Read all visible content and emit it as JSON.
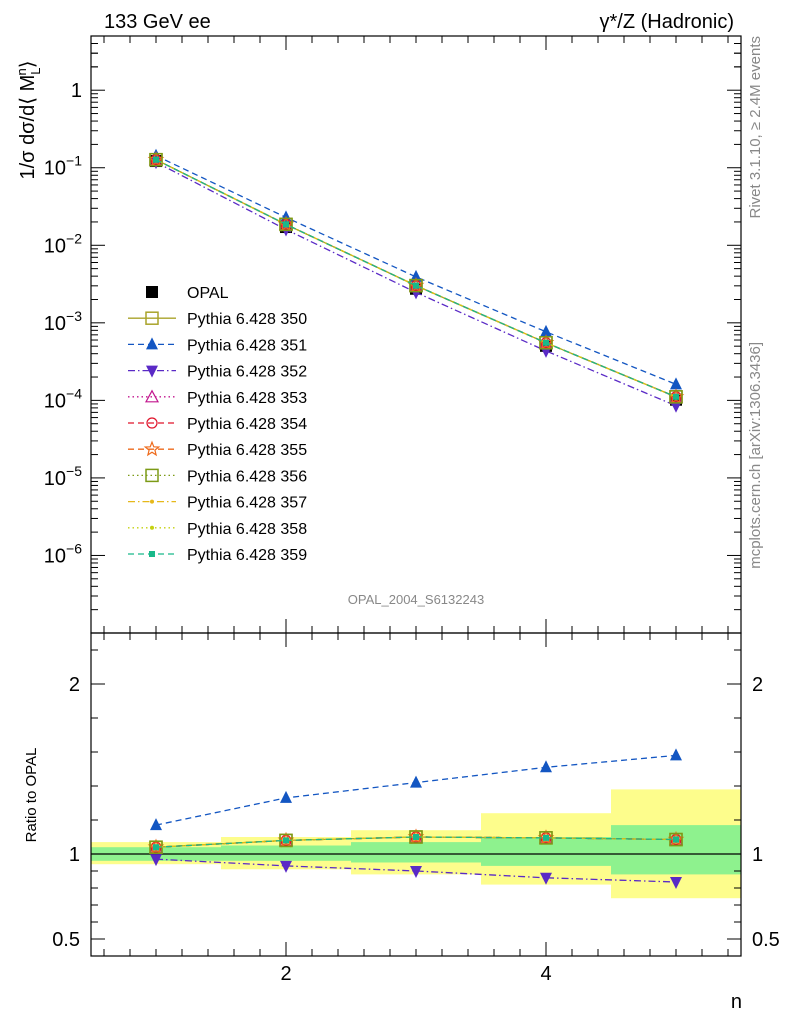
{
  "header": {
    "left": "133 GeV ee",
    "right": "γ*/Z (Hadronic)"
  },
  "side": {
    "rivet": "Rivet 3.1.10, ≥ 2.4M events",
    "mcplots": "mcplots.cern.ch [arXiv:1306.3436]"
  },
  "watermark": "OPAL_2004_S6132243",
  "colors": {
    "data": "#000000",
    "band_inner": "#8ef28e",
    "band_outer": "#fdfd8c"
  },
  "chart_data": [
    {
      "type": "line",
      "panel": "main",
      "ylabel": "1/σ dσ/d〈 M_L^n 〉",
      "yscale": "log",
      "ylim": [
        1e-07,
        5
      ],
      "xlim": [
        0.5,
        5.5
      ],
      "y_ticks": [
        "1",
        "10^-1",
        "10^-2",
        "10^-3",
        "10^-4",
        "10^-5",
        "10^-6"
      ],
      "x": [
        1,
        2,
        3,
        4,
        5
      ],
      "legend_position": "middle-left",
      "series": [
        {
          "name": "OPAL",
          "values": [
            0.122,
            0.0172,
            0.00275,
            0.000505,
            0.000102
          ],
          "color": "#000000",
          "marker": "square-filled",
          "dash": "none"
        },
        {
          "name": "Pythia 6.428 350",
          "values": [
            0.127,
            0.0186,
            0.00302,
            0.000553,
            0.000111
          ],
          "color": "#a9a32a",
          "marker": "square-open",
          "dash": "solid"
        },
        {
          "name": "Pythia 6.428 351",
          "values": [
            0.143,
            0.0229,
            0.00391,
            0.000765,
            0.000161
          ],
          "color": "#1356c2",
          "marker": "triangle-up",
          "dash": "dashed"
        },
        {
          "name": "Pythia 6.428 352",
          "values": [
            0.118,
            0.016,
            0.00247,
            0.000435,
            8.52e-05
          ],
          "color": "#5a2ac6",
          "marker": "triangle-down",
          "dash": "dashdot"
        },
        {
          "name": "Pythia 6.428 353",
          "values": [
            0.127,
            0.0186,
            0.00302,
            0.000553,
            0.000111
          ],
          "color": "#c2168e",
          "marker": "triangle-open",
          "dash": "dotted"
        },
        {
          "name": "Pythia 6.428 354",
          "values": [
            0.127,
            0.0186,
            0.00302,
            0.000553,
            0.000111
          ],
          "color": "#e0152b",
          "marker": "circle-open",
          "dash": "dashed"
        },
        {
          "name": "Pythia 6.428 355",
          "values": [
            0.127,
            0.0186,
            0.00302,
            0.000553,
            0.000111
          ],
          "color": "#ee6a1b",
          "marker": "star-open",
          "dash": "dashed"
        },
        {
          "name": "Pythia 6.428 356",
          "values": [
            0.127,
            0.0186,
            0.00302,
            0.000553,
            0.000111
          ],
          "color": "#7c9a16",
          "marker": "square-open",
          "dash": "dotted"
        },
        {
          "name": "Pythia 6.428 357",
          "values": [
            0.127,
            0.0186,
            0.00302,
            0.000553,
            0.000111
          ],
          "color": "#e6b81a",
          "marker": "dot",
          "dash": "dashdot"
        },
        {
          "name": "Pythia 6.428 358",
          "values": [
            0.127,
            0.0186,
            0.00302,
            0.000553,
            0.000111
          ],
          "color": "#c4d10f",
          "marker": "dot",
          "dash": "dotted"
        },
        {
          "name": "Pythia 6.428 359",
          "values": [
            0.127,
            0.0186,
            0.00302,
            0.000553,
            0.000111
          ],
          "color": "#19b98a",
          "marker": "square-filled-small",
          "dash": "dashed"
        }
      ]
    },
    {
      "type": "line",
      "panel": "ratio",
      "xlabel": "n",
      "ylabel": "Ratio to OPAL",
      "ylim": [
        0.4,
        2.3
      ],
      "xlim": [
        0.5,
        5.5
      ],
      "x_ticks": [
        "2",
        "4"
      ],
      "y_ticks": [
        "0.5",
        "1",
        "2"
      ],
      "x": [
        1,
        2,
        3,
        4,
        5
      ],
      "bands": {
        "x_edges": [
          0.5,
          1.5,
          2.5,
          3.5,
          4.5,
          5.5
        ],
        "inner_low": [
          0.96,
          0.96,
          0.95,
          0.93,
          0.88
        ],
        "inner_high": [
          1.04,
          1.05,
          1.07,
          1.1,
          1.17
        ],
        "outer_low": [
          0.94,
          0.91,
          0.88,
          0.82,
          0.74
        ],
        "outer_high": [
          1.07,
          1.1,
          1.14,
          1.24,
          1.38
        ]
      },
      "series": [
        {
          "name": "Pythia 6.428 350",
          "values": [
            1.04,
            1.08,
            1.1,
            1.095,
            1.085
          ],
          "color": "#a9a32a"
        },
        {
          "name": "Pythia 6.428 351",
          "values": [
            1.17,
            1.33,
            1.42,
            1.51,
            1.58
          ],
          "color": "#1356c2"
        },
        {
          "name": "Pythia 6.428 352",
          "values": [
            0.97,
            0.93,
            0.9,
            0.86,
            0.835
          ],
          "color": "#5a2ac6"
        }
      ]
    }
  ]
}
